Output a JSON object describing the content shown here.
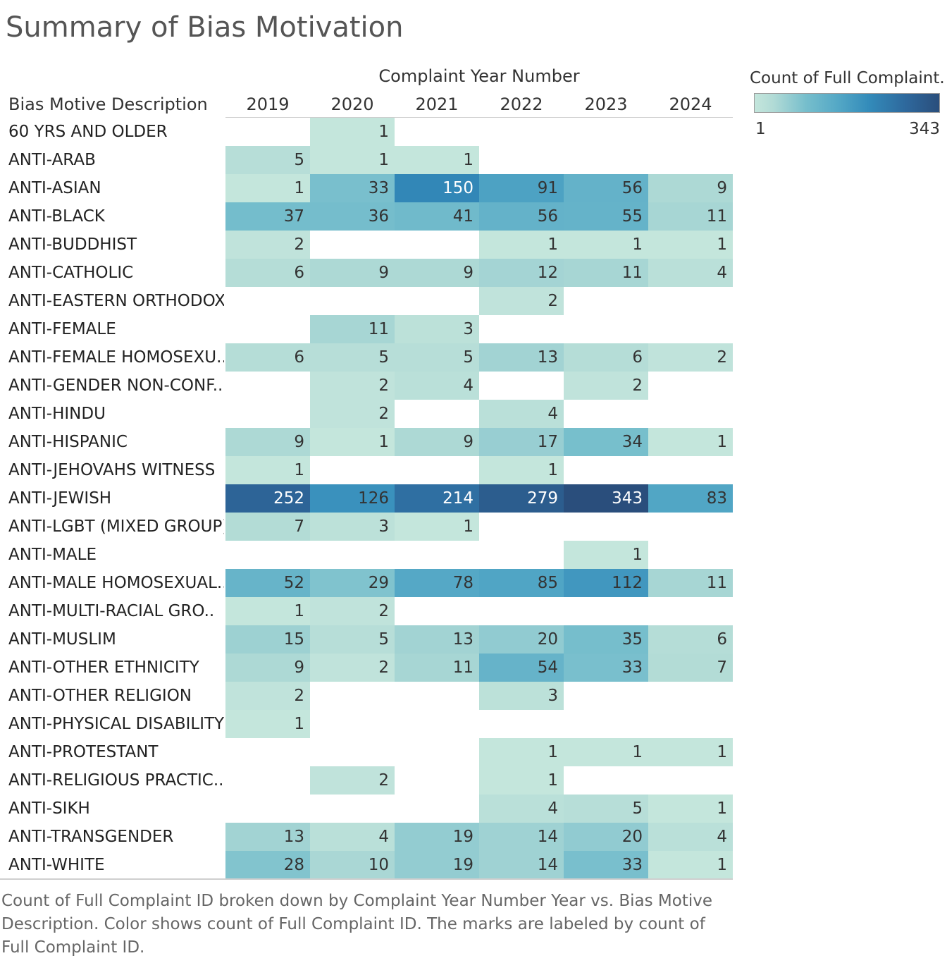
{
  "title": "Summary of Bias Motivation",
  "caption": "Count of Full Complaint ID broken down by Complaint Year Number Year vs. Bias Motive Description.  Color shows count of Full Complaint ID.  The marks are labeled by count of Full Complaint ID.",
  "legend": {
    "title": "Count of Full Complaint..",
    "min_label": "1",
    "max_label": "343",
    "min_color": "#c4e6dc",
    "max_color": "#2a4e7c"
  },
  "chart_data": {
    "type": "heatmap",
    "column_axis_title": "Complaint Year Number",
    "row_axis_title": "Bias Motive Description",
    "columns": [
      "2019",
      "2020",
      "2021",
      "2022",
      "2023",
      "2024"
    ],
    "color_range": [
      1,
      343
    ],
    "rows": [
      {
        "label": "60 YRS AND OLDER",
        "values": [
          null,
          1,
          null,
          null,
          null,
          null
        ]
      },
      {
        "label": "ANTI-ARAB",
        "values": [
          5,
          1,
          1,
          null,
          null,
          null
        ]
      },
      {
        "label": "ANTI-ASIAN",
        "values": [
          1,
          33,
          150,
          91,
          56,
          9
        ]
      },
      {
        "label": "ANTI-BLACK",
        "values": [
          37,
          36,
          41,
          56,
          55,
          11
        ]
      },
      {
        "label": "ANTI-BUDDHIST",
        "values": [
          2,
          null,
          null,
          1,
          1,
          1
        ]
      },
      {
        "label": "ANTI-CATHOLIC",
        "values": [
          6,
          9,
          9,
          12,
          11,
          4
        ]
      },
      {
        "label": "ANTI-EASTERN ORTHODOX",
        "values": [
          null,
          null,
          null,
          2,
          null,
          null
        ]
      },
      {
        "label": "ANTI-FEMALE",
        "values": [
          null,
          11,
          3,
          null,
          null,
          null
        ]
      },
      {
        "label": "ANTI-FEMALE HOMOSEXU..",
        "values": [
          6,
          5,
          5,
          13,
          6,
          2
        ]
      },
      {
        "label": "ANTI-GENDER NON-CONF..",
        "values": [
          null,
          2,
          4,
          null,
          2,
          null
        ]
      },
      {
        "label": "ANTI-HINDU",
        "values": [
          null,
          2,
          null,
          4,
          null,
          null
        ]
      },
      {
        "label": "ANTI-HISPANIC",
        "values": [
          9,
          1,
          9,
          17,
          34,
          1
        ]
      },
      {
        "label": "ANTI-JEHOVAHS WITNESS",
        "values": [
          1,
          null,
          null,
          1,
          null,
          null
        ]
      },
      {
        "label": "ANTI-JEWISH",
        "values": [
          252,
          126,
          214,
          279,
          343,
          83
        ]
      },
      {
        "label": "ANTI-LGBT (MIXED GROUP)",
        "values": [
          7,
          3,
          1,
          null,
          null,
          null
        ]
      },
      {
        "label": "ANTI-MALE",
        "values": [
          null,
          null,
          null,
          null,
          1,
          null
        ]
      },
      {
        "label": "ANTI-MALE HOMOSEXUAL..",
        "values": [
          52,
          29,
          78,
          85,
          112,
          11
        ]
      },
      {
        "label": "ANTI-MULTI-RACIAL GRO..",
        "values": [
          1,
          2,
          null,
          null,
          null,
          null
        ]
      },
      {
        "label": "ANTI-MUSLIM",
        "values": [
          15,
          5,
          13,
          20,
          35,
          6
        ]
      },
      {
        "label": "ANTI-OTHER ETHNICITY",
        "values": [
          9,
          2,
          11,
          54,
          33,
          7
        ]
      },
      {
        "label": "ANTI-OTHER RELIGION",
        "values": [
          2,
          null,
          null,
          3,
          null,
          null
        ]
      },
      {
        "label": "ANTI-PHYSICAL DISABILITY",
        "values": [
          1,
          null,
          null,
          null,
          null,
          null
        ]
      },
      {
        "label": "ANTI-PROTESTANT",
        "values": [
          null,
          null,
          null,
          1,
          1,
          1
        ]
      },
      {
        "label": "ANTI-RELIGIOUS PRACTIC..",
        "values": [
          null,
          2,
          null,
          1,
          null,
          null
        ]
      },
      {
        "label": "ANTI-SIKH",
        "values": [
          null,
          null,
          null,
          4,
          5,
          1
        ]
      },
      {
        "label": "ANTI-TRANSGENDER",
        "values": [
          13,
          4,
          19,
          14,
          20,
          4
        ]
      },
      {
        "label": "ANTI-WHITE",
        "values": [
          28,
          10,
          19,
          14,
          33,
          1
        ]
      }
    ]
  }
}
